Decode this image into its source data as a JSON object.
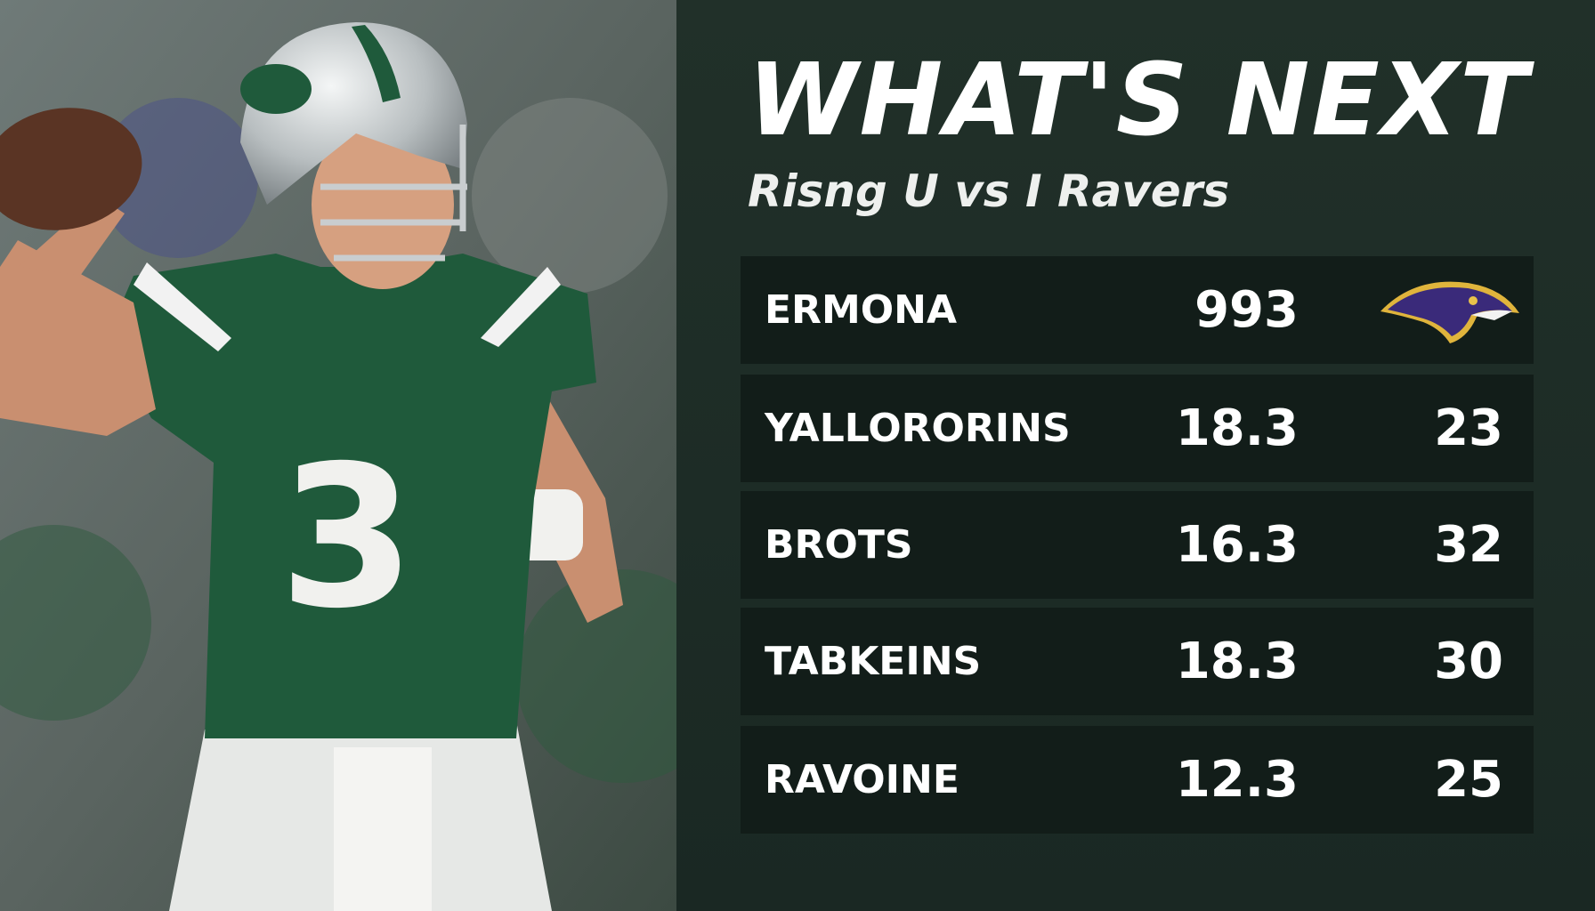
{
  "header": {
    "title": "WHAT'S NEXT",
    "subtitle": "Risng U vs I Ravers"
  },
  "photo": {
    "jersey_number": "3"
  },
  "table": {
    "rows": [
      [
        "ERMONA",
        "993",
        null
      ],
      [
        "YALLORORINS",
        "18.3",
        "23"
      ],
      [
        "BROTS",
        "16.3",
        "32"
      ],
      [
        "TABKEINS",
        "18.3",
        "30"
      ],
      [
        "RAVOINE",
        "12.3",
        "25"
      ]
    ]
  }
}
